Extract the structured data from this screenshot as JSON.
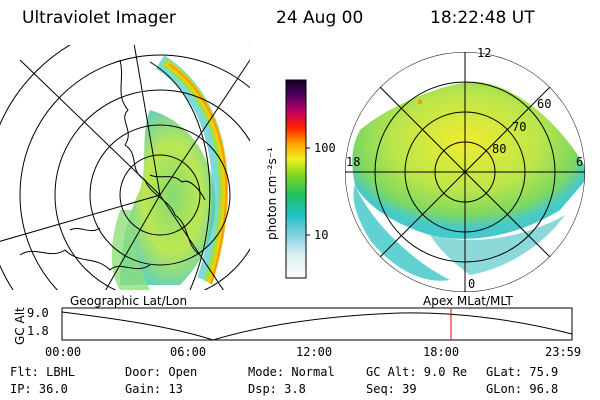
{
  "header": {
    "title": "Ultraviolet Imager",
    "date": "24 Aug 00",
    "time": "18:22:48 UT"
  },
  "colorbar": {
    "ticks": [
      "100",
      "10"
    ],
    "unit_label": "photon cm⁻²s⁻¹"
  },
  "polar_grid": {
    "mlt_labels": [
      "12",
      "18",
      "6",
      "0"
    ],
    "lat_labels": [
      "60",
      "70",
      "80"
    ]
  },
  "map_labels": {
    "left": "Geographic Lat/Lon",
    "right": "Apex MLat/MLT"
  },
  "altitude_plot": {
    "ylabel": "GC Alt",
    "y_ticks": [
      "9.0",
      "1.8"
    ],
    "x_ticks": [
      "00:00",
      "06:00",
      "12:00",
      "18:00",
      "23:59"
    ],
    "marker_color": "#e00000"
  },
  "status": {
    "flt": "Flt: LBHL",
    "ip": "IP: 36.0",
    "door": "Door: Open",
    "gain": "Gain: 13",
    "mode": "Mode: Normal",
    "dsp": "Dsp:    3.8",
    "gc_alt": "GC Alt: 9.0 Re",
    "seq": "Seq: 39",
    "glat": "GLat:   75.9",
    "glon": "GLon:   96.8"
  }
}
